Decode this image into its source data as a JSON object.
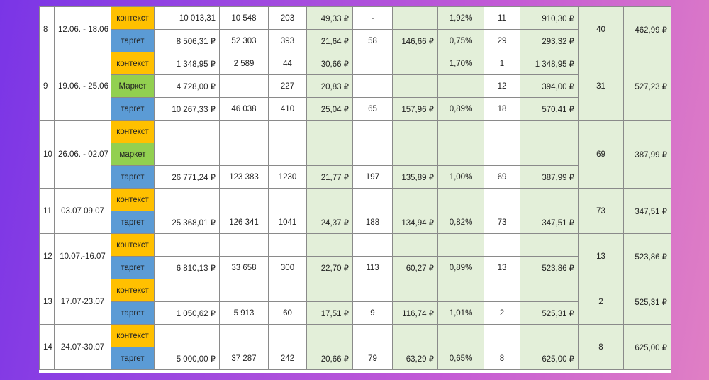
{
  "colors": {
    "kontekst": "#ffc000",
    "market": "#92d050",
    "target": "#5b9bd5",
    "green_column": "#e3efd9"
  },
  "rows": [
    {
      "n": "8",
      "week": "12.06. - 18.06",
      "channels": [
        {
          "label": "контекст",
          "type": "kontekst",
          "spend": "10 013,31",
          "impr": "10 548",
          "clicks": "203",
          "cpc": "49,33 ₽",
          "leads": "-",
          "cpl": "",
          "cr": "1,92%",
          "sales": "11",
          "cps": "910,30 ₽"
        },
        {
          "label": "таргет",
          "type": "target",
          "spend": "8 506,31 ₽",
          "impr": "52 303",
          "clicks": "393",
          "cpc": "21,64 ₽",
          "leads": "58",
          "cpl": "146,66 ₽",
          "cr": "0,75%",
          "sales": "29",
          "cps": "293,32 ₽"
        }
      ],
      "total": "40",
      "avg": "462,99 ₽"
    },
    {
      "n": "9",
      "week": "19.06. - 25.06",
      "channels": [
        {
          "label": "контекст",
          "type": "kontekst",
          "spend": "1 348,95 ₽",
          "impr": "2 589",
          "clicks": "44",
          "cpc": "30,66 ₽",
          "leads": "",
          "cpl": "",
          "cr": "1,70%",
          "sales": "1",
          "cps": "1 348,95 ₽"
        },
        {
          "label": "Маркет",
          "type": "market",
          "spend": "4 728,00 ₽",
          "impr": "",
          "clicks": "227",
          "cpc": "20,83 ₽",
          "leads": "",
          "cpl": "",
          "cr": "",
          "sales": "12",
          "cps": "394,00 ₽"
        },
        {
          "label": "таргет",
          "type": "target",
          "spend": "10 267,33 ₽",
          "impr": "46 038",
          "clicks": "410",
          "cpc": "25,04 ₽",
          "leads": "65",
          "cpl": "157,96 ₽",
          "cr": "0,89%",
          "sales": "18",
          "cps": "570,41 ₽"
        }
      ],
      "total": "31",
      "avg": "527,23 ₽"
    },
    {
      "n": "10",
      "week": "26.06. - 02.07",
      "channels": [
        {
          "label": "контекст",
          "type": "kontekst",
          "spend": "",
          "impr": "",
          "clicks": "",
          "cpc": "",
          "leads": "",
          "cpl": "",
          "cr": "",
          "sales": "",
          "cps": ""
        },
        {
          "label": "маркет",
          "type": "market",
          "spend": "",
          "impr": "",
          "clicks": "",
          "cpc": "",
          "leads": "",
          "cpl": "",
          "cr": "",
          "sales": "",
          "cps": ""
        },
        {
          "label": "таргет",
          "type": "target",
          "spend": "26 771,24 ₽",
          "impr": "123 383",
          "clicks": "1230",
          "cpc": "21,77 ₽",
          "leads": "197",
          "cpl": "135,89 ₽",
          "cr": "1,00%",
          "sales": "69",
          "cps": "387,99 ₽"
        }
      ],
      "total": "69",
      "avg": "387,99 ₽"
    },
    {
      "n": "11",
      "week": "03.07 09.07",
      "channels": [
        {
          "label": "контекст",
          "type": "kontekst",
          "spend": "",
          "impr": "",
          "clicks": "",
          "cpc": "",
          "leads": "",
          "cpl": "",
          "cr": "",
          "sales": "",
          "cps": ""
        },
        {
          "label": "таргет",
          "type": "target",
          "spend": "25 368,01 ₽",
          "impr": "126 341",
          "clicks": "1041",
          "cpc": "24,37 ₽",
          "leads": "188",
          "cpl": "134,94 ₽",
          "cr": "0,82%",
          "sales": "73",
          "cps": "347,51 ₽"
        }
      ],
      "total": "73",
      "avg": "347,51 ₽"
    },
    {
      "n": "12",
      "week": "10.07.-16.07",
      "channels": [
        {
          "label": "контекст",
          "type": "kontekst",
          "spend": "",
          "impr": "",
          "clicks": "",
          "cpc": "",
          "leads": "",
          "cpl": "",
          "cr": "",
          "sales": "",
          "cps": ""
        },
        {
          "label": "таргет",
          "type": "target",
          "spend": "6 810,13 ₽",
          "impr": "33 658",
          "clicks": "300",
          "cpc": "22,70 ₽",
          "leads": "113",
          "cpl": "60,27 ₽",
          "cr": "0,89%",
          "sales": "13",
          "cps": "523,86 ₽"
        }
      ],
      "total": "13",
      "avg": "523,86 ₽"
    },
    {
      "n": "13",
      "week": "17.07-23.07",
      "channels": [
        {
          "label": "контекст",
          "type": "kontekst",
          "spend": "",
          "impr": "",
          "clicks": "",
          "cpc": "",
          "leads": "",
          "cpl": "",
          "cr": "",
          "sales": "",
          "cps": ""
        },
        {
          "label": "таргет",
          "type": "target",
          "spend": "1 050,62 ₽",
          "impr": "5 913",
          "clicks": "60",
          "cpc": "17,51 ₽",
          "leads": "9",
          "cpl": "116,74 ₽",
          "cr": "1,01%",
          "sales": "2",
          "cps": "525,31 ₽"
        }
      ],
      "total": "2",
      "avg": "525,31 ₽"
    },
    {
      "n": "14",
      "week": "24.07-30.07",
      "channels": [
        {
          "label": "контекст",
          "type": "kontekst",
          "spend": "",
          "impr": "",
          "clicks": "",
          "cpc": "",
          "leads": "",
          "cpl": "",
          "cr": "",
          "sales": "",
          "cps": ""
        },
        {
          "label": "таргет",
          "type": "target",
          "spend": "5 000,00 ₽",
          "impr": "37 287",
          "clicks": "242",
          "cpc": "20,66 ₽",
          "leads": "79",
          "cpl": "63,29 ₽",
          "cr": "0,65%",
          "sales": "8",
          "cps": "625,00 ₽"
        }
      ],
      "total": "8",
      "avg": "625,00 ₽"
    }
  ]
}
